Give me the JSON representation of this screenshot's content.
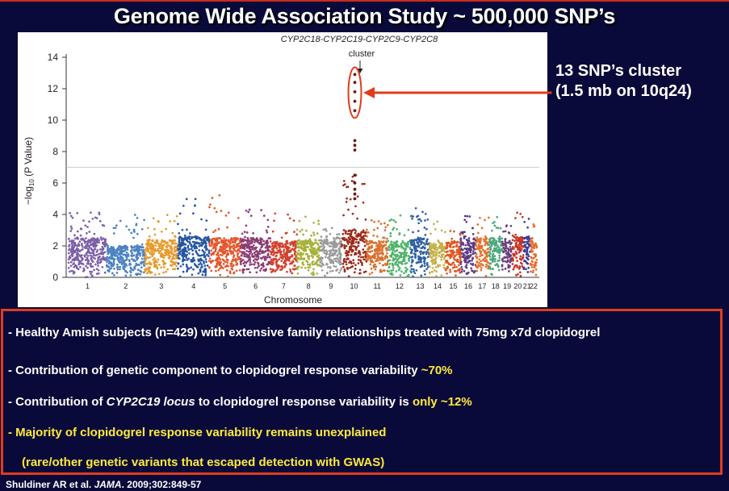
{
  "slide": {
    "title": "Genome Wide Association Study ~ 500,000 SNP’s",
    "callout_line1": "13 SNP’s cluster",
    "callout_line2": "(1.5 mb on 10q24)",
    "citation_authors": "Shuldiner AR et al.",
    "citation_journal": "JAMA",
    "citation_rest": ". 2009;302:849-57",
    "accent_color": "#e03c1c",
    "highlight_color": "#ffea3a",
    "background_color": "#0a0a3a"
  },
  "bullets": {
    "b1": "- Healthy Amish subjects (n=429) with extensive family relationships treated with 75mg x7d clopidogrel",
    "b2_text": "- Contribution of  genetic component to clopidogrel response  variability",
    "b2_value": "~70%",
    "b3_pre": "- Contribution of",
    "b3_italic": "CYP2C19 locus",
    "b3_mid": "to clopidogrel response  variability is",
    "b3_value": "only ~12%",
    "b4": "- Majority of clopidogrel response variability  remains unexplained",
    "b5": "(rare/other genetic variants that escaped detection with GWAS)"
  },
  "chart_data": {
    "type": "scatter",
    "subtype": "manhattan",
    "annotation_genes": "CYP2C18-CYP2C19-CYP2C9-CYP2C8",
    "annotation_label": "cluster",
    "xlabel": "Chromosome",
    "ylabel_prefix": "−log",
    "ylabel_sub": "10",
    "ylabel_suffix": " (P Value)",
    "ylim": [
      0,
      14
    ],
    "yticks": [
      0,
      2,
      4,
      6,
      8,
      10,
      12,
      14
    ],
    "threshold_y": 7,
    "grid": false,
    "chromosomes": [
      {
        "label": "1",
        "width": 23,
        "color": "#7b5ea8",
        "base": 2.5,
        "peak": 4.2
      },
      {
        "label": "2",
        "width": 23,
        "color": "#4c82c2",
        "base": 2.0,
        "peak": 4.0
      },
      {
        "label": "3",
        "width": 20,
        "color": "#e89a2c",
        "base": 2.4,
        "peak": 4.0
      },
      {
        "label": "4",
        "width": 19,
        "color": "#2456a6",
        "base": 2.6,
        "peak": 5.0
      },
      {
        "label": "5",
        "width": 19,
        "color": "#e3562a",
        "base": 2.5,
        "peak": 5.6
      },
      {
        "label": "6",
        "width": 18,
        "color": "#8c3b73",
        "base": 2.5,
        "peak": 4.4
      },
      {
        "label": "7",
        "width": 16,
        "color": "#d3402c",
        "base": 2.3,
        "peak": 4.2
      },
      {
        "label": "8",
        "width": 14,
        "color": "#a8b13a",
        "base": 2.4,
        "peak": 3.9
      },
      {
        "label": "9",
        "width": 13,
        "color": "#9a9a9a",
        "base": 2.4,
        "peak": 3.4
      },
      {
        "label": "10",
        "width": 15,
        "color": "#9c2a1a",
        "base": 3.0,
        "peak": 6.5
      },
      {
        "label": "11",
        "width": 13,
        "color": "#d9702e",
        "base": 2.3,
        "peak": 3.8
      },
      {
        "label": "12",
        "width": 14,
        "color": "#4fb36a",
        "base": 2.3,
        "peak": 4.0
      },
      {
        "label": "13",
        "width": 11,
        "color": "#2e5fa5",
        "base": 2.5,
        "peak": 4.4
      },
      {
        "label": "14",
        "width": 10,
        "color": "#c5b24a",
        "base": 2.2,
        "peak": 3.6
      },
      {
        "label": "15",
        "width": 9,
        "color": "#e0561f",
        "base": 2.3,
        "peak": 3.6
      },
      {
        "label": "16",
        "width": 9,
        "color": "#5b3a86",
        "base": 2.5,
        "peak": 3.9
      },
      {
        "label": "17",
        "width": 8,
        "color": "#e86f2b",
        "base": 2.5,
        "peak": 4.0
      },
      {
        "label": "18",
        "width": 8,
        "color": "#4aa87a",
        "base": 2.5,
        "peak": 4.1
      },
      {
        "label": "19",
        "width": 6,
        "color": "#6a3d7a",
        "base": 2.4,
        "peak": 3.6
      },
      {
        "label": "20",
        "width": 7,
        "color": "#c63324",
        "base": 2.6,
        "peak": 4.4
      },
      {
        "label": "21",
        "width": 4,
        "color": "#3a3a9a",
        "base": 2.6,
        "peak": 4.3
      },
      {
        "label": "22",
        "width": 4,
        "color": "#e66b2a",
        "base": 2.5,
        "peak": 3.4
      }
    ],
    "cluster_points": [
      12.9,
      12.4,
      11.8,
      11.2,
      10.6,
      8.7,
      8.4,
      8.1,
      6.5,
      6.0,
      5.6,
      5.3,
      5.0
    ]
  }
}
